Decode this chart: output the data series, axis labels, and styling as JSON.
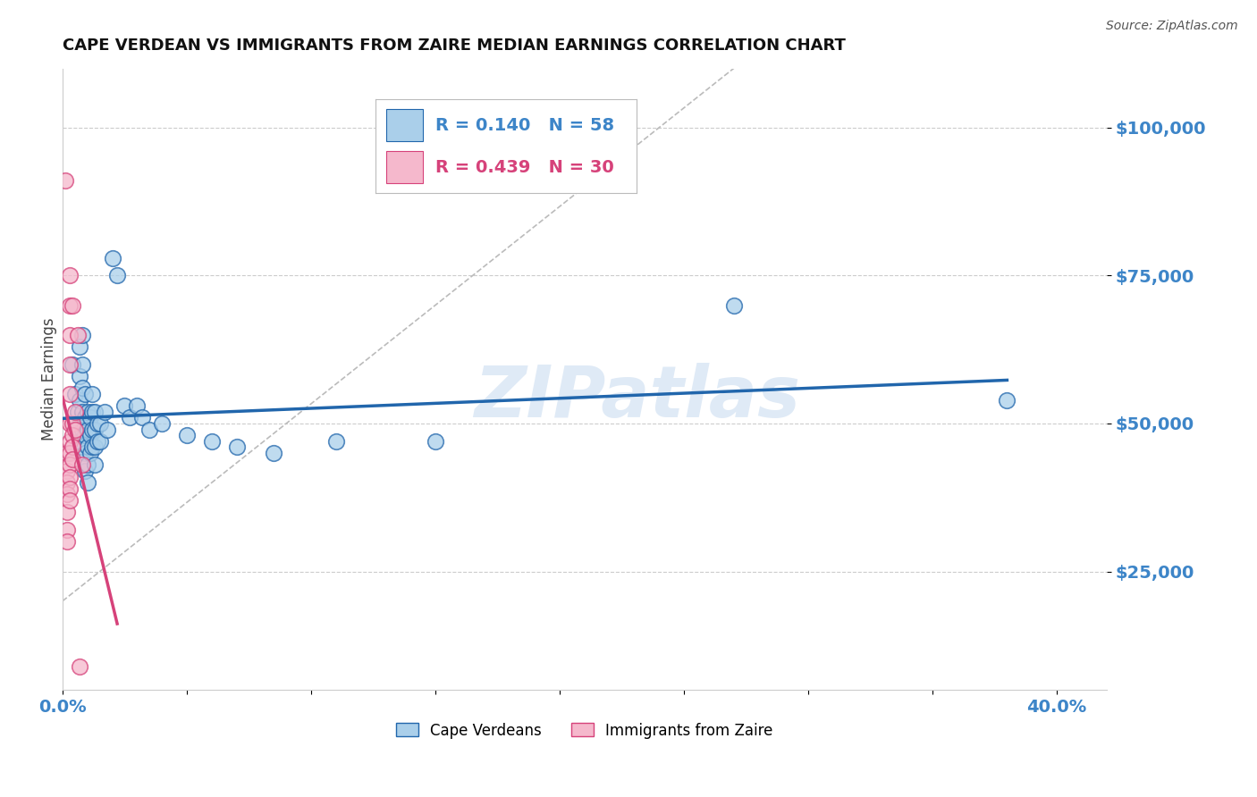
{
  "title": "CAPE VERDEAN VS IMMIGRANTS FROM ZAIRE MEDIAN EARNINGS CORRELATION CHART",
  "source": "Source: ZipAtlas.com",
  "ylabel": "Median Earnings",
  "y_ticks": [
    25000,
    50000,
    75000,
    100000
  ],
  "y_tick_labels": [
    "$25,000",
    "$50,000",
    "$75,000",
    "$100,000"
  ],
  "xlim": [
    0.0,
    0.42
  ],
  "ylim": [
    5000,
    110000
  ],
  "blue_R": "0.140",
  "blue_N": "58",
  "pink_R": "0.439",
  "pink_N": "30",
  "blue_color": "#aacfea",
  "pink_color": "#f5b8cc",
  "blue_line_color": "#2166ac",
  "pink_line_color": "#d6427a",
  "blue_scatter": [
    [
      0.004,
      60000
    ],
    [
      0.005,
      55000
    ],
    [
      0.006,
      52000
    ],
    [
      0.006,
      48000
    ],
    [
      0.007,
      63000
    ],
    [
      0.007,
      58000
    ],
    [
      0.007,
      54000
    ],
    [
      0.007,
      50000
    ],
    [
      0.007,
      47000
    ],
    [
      0.008,
      65000
    ],
    [
      0.008,
      60000
    ],
    [
      0.008,
      56000
    ],
    [
      0.008,
      52000
    ],
    [
      0.008,
      49000
    ],
    [
      0.008,
      46000
    ],
    [
      0.009,
      55000
    ],
    [
      0.009,
      51000
    ],
    [
      0.009,
      48000
    ],
    [
      0.009,
      45000
    ],
    [
      0.009,
      42000
    ],
    [
      0.01,
      52000
    ],
    [
      0.01,
      49000
    ],
    [
      0.01,
      46000
    ],
    [
      0.01,
      43000
    ],
    [
      0.01,
      40000
    ],
    [
      0.011,
      51000
    ],
    [
      0.011,
      48000
    ],
    [
      0.011,
      45000
    ],
    [
      0.012,
      55000
    ],
    [
      0.012,
      52000
    ],
    [
      0.012,
      49000
    ],
    [
      0.012,
      46000
    ],
    [
      0.013,
      52000
    ],
    [
      0.013,
      49000
    ],
    [
      0.013,
      46000
    ],
    [
      0.013,
      43000
    ],
    [
      0.014,
      50000
    ],
    [
      0.014,
      47000
    ],
    [
      0.015,
      50000
    ],
    [
      0.015,
      47000
    ],
    [
      0.017,
      52000
    ],
    [
      0.018,
      49000
    ],
    [
      0.02,
      78000
    ],
    [
      0.022,
      75000
    ],
    [
      0.025,
      53000
    ],
    [
      0.027,
      51000
    ],
    [
      0.03,
      53000
    ],
    [
      0.032,
      51000
    ],
    [
      0.035,
      49000
    ],
    [
      0.04,
      50000
    ],
    [
      0.05,
      48000
    ],
    [
      0.06,
      47000
    ],
    [
      0.07,
      46000
    ],
    [
      0.085,
      45000
    ],
    [
      0.11,
      47000
    ],
    [
      0.15,
      47000
    ],
    [
      0.27,
      70000
    ],
    [
      0.38,
      54000
    ]
  ],
  "pink_scatter": [
    [
      0.001,
      91000
    ],
    [
      0.002,
      45000
    ],
    [
      0.002,
      42000
    ],
    [
      0.002,
      40000
    ],
    [
      0.002,
      38000
    ],
    [
      0.002,
      35000
    ],
    [
      0.002,
      32000
    ],
    [
      0.002,
      30000
    ],
    [
      0.003,
      75000
    ],
    [
      0.003,
      70000
    ],
    [
      0.003,
      65000
    ],
    [
      0.003,
      60000
    ],
    [
      0.003,
      55000
    ],
    [
      0.003,
      50000
    ],
    [
      0.003,
      47000
    ],
    [
      0.003,
      45000
    ],
    [
      0.003,
      43000
    ],
    [
      0.003,
      41000
    ],
    [
      0.003,
      39000
    ],
    [
      0.003,
      37000
    ],
    [
      0.004,
      70000
    ],
    [
      0.004,
      50000
    ],
    [
      0.004,
      48000
    ],
    [
      0.004,
      46000
    ],
    [
      0.004,
      44000
    ],
    [
      0.005,
      52000
    ],
    [
      0.005,
      49000
    ],
    [
      0.006,
      65000
    ],
    [
      0.007,
      9000
    ],
    [
      0.008,
      43000
    ]
  ],
  "legend_label_blue": "Cape Verdeans",
  "legend_label_pink": "Immigrants from Zaire",
  "watermark": "ZIPatlas",
  "background_color": "#ffffff",
  "grid_color": "#cccccc",
  "title_fontsize": 13,
  "tick_label_color": "#3d85c8"
}
